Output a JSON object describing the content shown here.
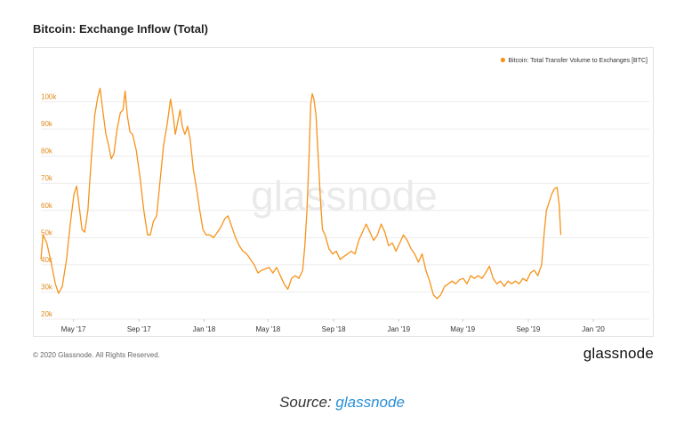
{
  "header": {
    "title": "Bitcoin: Exchange Inflow (Total)"
  },
  "footer": {
    "copyright": "© 2020 Glassnode. All Rights Reserved.",
    "brand": "glassnode"
  },
  "source": {
    "prefix": "Source: ",
    "link": "glassnode"
  },
  "watermark": "glassnode",
  "colors": {
    "series": "#f7931a",
    "ytick": "#e08a1e",
    "grid": "#ececec"
  },
  "chart_data": {
    "type": "line",
    "title": "Bitcoin: Exchange Inflow (Total)",
    "xlabel": "",
    "ylabel": "",
    "ylim": [
      20000,
      110000
    ],
    "xlim": [
      "2017-03-01",
      "2020-04-15"
    ],
    "yticks": [
      {
        "value": 20000,
        "label": "20k"
      },
      {
        "value": 30000,
        "label": "30k"
      },
      {
        "value": 40000,
        "label": "40k"
      },
      {
        "value": 50000,
        "label": "50k"
      },
      {
        "value": 60000,
        "label": "60k"
      },
      {
        "value": 70000,
        "label": "70k"
      },
      {
        "value": 80000,
        "label": "80k"
      },
      {
        "value": 90000,
        "label": "90k"
      },
      {
        "value": 100000,
        "label": "100k"
      }
    ],
    "xticks": [
      {
        "date": "2017-05-01",
        "label": "May '17"
      },
      {
        "date": "2017-09-01",
        "label": "Sep '17"
      },
      {
        "date": "2018-01-01",
        "label": "Jan '18"
      },
      {
        "date": "2018-05-01",
        "label": "May '18"
      },
      {
        "date": "2018-09-01",
        "label": "Sep '18"
      },
      {
        "date": "2019-01-01",
        "label": "Jan '19"
      },
      {
        "date": "2019-05-01",
        "label": "May '19"
      },
      {
        "date": "2019-09-01",
        "label": "Sep '19"
      },
      {
        "date": "2020-01-01",
        "label": "Jan '20"
      }
    ],
    "grid": true,
    "legend": {
      "position": "top-right"
    },
    "series": [
      {
        "name": "Bitcoin: Total Transfer Volume to Exchanges [BTC]",
        "points": [
          [
            "2017-03-01",
            42000
          ],
          [
            "2017-03-05",
            51000
          ],
          [
            "2017-03-12",
            48000
          ],
          [
            "2017-03-20",
            41000
          ],
          [
            "2017-03-28",
            33000
          ],
          [
            "2017-04-03",
            29500
          ],
          [
            "2017-04-10",
            32000
          ],
          [
            "2017-04-18",
            42000
          ],
          [
            "2017-04-25",
            55000
          ],
          [
            "2017-05-02",
            66000
          ],
          [
            "2017-05-07",
            69000
          ],
          [
            "2017-05-12",
            61000
          ],
          [
            "2017-05-17",
            53000
          ],
          [
            "2017-05-22",
            52000
          ],
          [
            "2017-05-28",
            60000
          ],
          [
            "2017-06-03",
            78000
          ],
          [
            "2017-06-10",
            95000
          ],
          [
            "2017-06-16",
            102000
          ],
          [
            "2017-06-20",
            105000
          ],
          [
            "2017-06-25",
            97000
          ],
          [
            "2017-07-01",
            88000
          ],
          [
            "2017-07-06",
            84000
          ],
          [
            "2017-07-11",
            79000
          ],
          [
            "2017-07-16",
            81000
          ],
          [
            "2017-07-22",
            90000
          ],
          [
            "2017-07-28",
            96000
          ],
          [
            "2017-08-02",
            97000
          ],
          [
            "2017-08-06",
            104000
          ],
          [
            "2017-08-10",
            95000
          ],
          [
            "2017-08-15",
            89000
          ],
          [
            "2017-08-20",
            88000
          ],
          [
            "2017-08-27",
            82000
          ],
          [
            "2017-09-03",
            72000
          ],
          [
            "2017-09-10",
            60000
          ],
          [
            "2017-09-17",
            51000
          ],
          [
            "2017-09-22",
            51000
          ],
          [
            "2017-09-28",
            56000
          ],
          [
            "2017-10-04",
            58000
          ],
          [
            "2017-10-10",
            70000
          ],
          [
            "2017-10-17",
            84000
          ],
          [
            "2017-10-24",
            92000
          ],
          [
            "2017-10-30",
            101000
          ],
          [
            "2017-11-04",
            95000
          ],
          [
            "2017-11-08",
            88000
          ],
          [
            "2017-11-12",
            92000
          ],
          [
            "2017-11-17",
            97000
          ],
          [
            "2017-11-21",
            91000
          ],
          [
            "2017-11-26",
            88000
          ],
          [
            "2017-12-01",
            91000
          ],
          [
            "2017-12-06",
            86000
          ],
          [
            "2017-12-12",
            75000
          ],
          [
            "2017-12-18",
            68000
          ],
          [
            "2017-12-24",
            60000
          ],
          [
            "2017-12-30",
            53000
          ],
          [
            "2018-01-05",
            51000
          ],
          [
            "2018-01-12",
            51000
          ],
          [
            "2018-01-19",
            50000
          ],
          [
            "2018-01-26",
            52000
          ],
          [
            "2018-02-02",
            54000
          ],
          [
            "2018-02-09",
            57000
          ],
          [
            "2018-02-15",
            58000
          ],
          [
            "2018-02-22",
            54000
          ],
          [
            "2018-03-01",
            50000
          ],
          [
            "2018-03-08",
            47000
          ],
          [
            "2018-03-15",
            45000
          ],
          [
            "2018-03-22",
            44000
          ],
          [
            "2018-03-29",
            42000
          ],
          [
            "2018-04-05",
            40000
          ],
          [
            "2018-04-12",
            37000
          ],
          [
            "2018-04-19",
            38000
          ],
          [
            "2018-04-26",
            38500
          ],
          [
            "2018-05-03",
            39000
          ],
          [
            "2018-05-10",
            37000
          ],
          [
            "2018-05-17",
            39000
          ],
          [
            "2018-05-24",
            36000
          ],
          [
            "2018-05-31",
            33000
          ],
          [
            "2018-06-07",
            31000
          ],
          [
            "2018-06-14",
            35000
          ],
          [
            "2018-06-21",
            36000
          ],
          [
            "2018-06-28",
            35000
          ],
          [
            "2018-07-05",
            38000
          ],
          [
            "2018-07-09",
            47000
          ],
          [
            "2018-07-13",
            60000
          ],
          [
            "2018-07-17",
            80000
          ],
          [
            "2018-07-20",
            99000
          ],
          [
            "2018-07-23",
            103000
          ],
          [
            "2018-07-26",
            101000
          ],
          [
            "2018-07-30",
            95000
          ],
          [
            "2018-08-03",
            80000
          ],
          [
            "2018-08-07",
            65000
          ],
          [
            "2018-08-11",
            53000
          ],
          [
            "2018-08-16",
            51000
          ],
          [
            "2018-08-23",
            46000
          ],
          [
            "2018-08-30",
            44000
          ],
          [
            "2018-09-06",
            45000
          ],
          [
            "2018-09-13",
            42000
          ],
          [
            "2018-09-20",
            43000
          ],
          [
            "2018-09-27",
            44000
          ],
          [
            "2018-10-04",
            45000
          ],
          [
            "2018-10-11",
            44000
          ],
          [
            "2018-10-18",
            49000
          ],
          [
            "2018-10-25",
            52000
          ],
          [
            "2018-11-01",
            55000
          ],
          [
            "2018-11-08",
            52000
          ],
          [
            "2018-11-15",
            49000
          ],
          [
            "2018-11-22",
            51000
          ],
          [
            "2018-11-29",
            55000
          ],
          [
            "2018-12-06",
            52000
          ],
          [
            "2018-12-13",
            47000
          ],
          [
            "2018-12-20",
            48000
          ],
          [
            "2018-12-27",
            45000
          ],
          [
            "2019-01-03",
            48000
          ],
          [
            "2019-01-10",
            51000
          ],
          [
            "2019-01-17",
            49000
          ],
          [
            "2019-01-24",
            46000
          ],
          [
            "2019-01-31",
            44000
          ],
          [
            "2019-02-07",
            41000
          ],
          [
            "2019-02-14",
            44000
          ],
          [
            "2019-02-21",
            38000
          ],
          [
            "2019-02-28",
            34000
          ],
          [
            "2019-03-07",
            29000
          ],
          [
            "2019-03-14",
            27500
          ],
          [
            "2019-03-21",
            29000
          ],
          [
            "2019-03-28",
            32000
          ],
          [
            "2019-04-04",
            33000
          ],
          [
            "2019-04-11",
            34000
          ],
          [
            "2019-04-18",
            33000
          ],
          [
            "2019-04-25",
            34500
          ],
          [
            "2019-05-02",
            35000
          ],
          [
            "2019-05-09",
            33000
          ],
          [
            "2019-05-16",
            36000
          ],
          [
            "2019-05-23",
            35000
          ],
          [
            "2019-05-30",
            36000
          ],
          [
            "2019-06-06",
            35000
          ],
          [
            "2019-06-13",
            37000
          ],
          [
            "2019-06-20",
            39500
          ],
          [
            "2019-06-27",
            35000
          ],
          [
            "2019-07-04",
            33000
          ],
          [
            "2019-07-11",
            34000
          ],
          [
            "2019-07-18",
            32000
          ],
          [
            "2019-07-25",
            34000
          ],
          [
            "2019-08-01",
            33000
          ],
          [
            "2019-08-08",
            34000
          ],
          [
            "2019-08-15",
            33000
          ],
          [
            "2019-08-22",
            35000
          ],
          [
            "2019-08-29",
            34000
          ],
          [
            "2019-09-05",
            37000
          ],
          [
            "2019-09-12",
            38000
          ],
          [
            "2019-09-19",
            36000
          ],
          [
            "2019-09-26",
            40000
          ],
          [
            "2019-10-01",
            52000
          ],
          [
            "2019-10-05",
            60000
          ],
          [
            "2019-10-10",
            63000
          ],
          [
            "2019-10-15",
            66000
          ],
          [
            "2019-10-20",
            68000
          ],
          [
            "2019-10-25",
            68500
          ],
          [
            "2019-10-29",
            62000
          ],
          [
            "2019-11-01",
            51000
          ]
        ]
      }
    ]
  }
}
